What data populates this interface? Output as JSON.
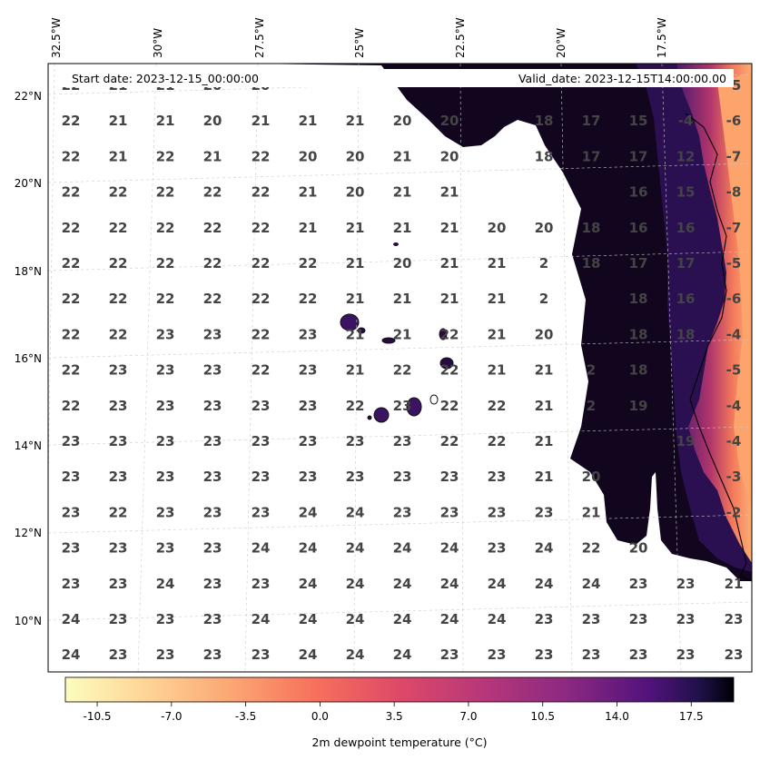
{
  "header": {
    "start_date": "Start date: 2023-12-15_00:00:00",
    "valid_date": "Valid_date: 2023-12-15T14:00:00.00"
  },
  "axes": {
    "lon_labels": [
      "32.5°W",
      "30°W",
      "27.5°W",
      "25°W",
      "22.5°W",
      "20°W",
      "17.5°W"
    ],
    "lat_labels": [
      "22°N",
      "20°N",
      "18°N",
      "16°N",
      "14°N",
      "12°N",
      "10°N"
    ]
  },
  "colorbar": {
    "title": "2m dewpoint temperature ($^\\circ$C)",
    "title_display": "2m dewpoint temperature (°C)",
    "tick_labels": [
      "-10.5",
      "-7.0",
      "-3.5",
      "0.0",
      "3.5",
      "7.0",
      "10.5",
      "14.0",
      "17.5"
    ],
    "colormap": "magma_r",
    "range": [
      -12,
      19.5
    ]
  },
  "colors": {
    "land_hot": "#fca46b",
    "land_dark": "#1a0b2e",
    "ocean": "#ffffff",
    "value_text": "#444444"
  },
  "chart_data": {
    "type": "heatmap",
    "title": "",
    "variable": "2m dewpoint temperature (°C)",
    "grid_values": [
      [
        "22",
        "21",
        "21",
        "20",
        "20",
        "",
        "",
        "",
        "",
        "",
        "",
        "",
        "",
        "",
        "-5"
      ],
      [
        "22",
        "21",
        "21",
        "20",
        "21",
        "21",
        "21",
        "20",
        "20",
        "",
        "18",
        "17",
        "15",
        "-4",
        "-6"
      ],
      [
        "22",
        "21",
        "22",
        "21",
        "22",
        "20",
        "20",
        "21",
        "20",
        "",
        "18",
        "17",
        "17",
        "12",
        "-7"
      ],
      [
        "22",
        "22",
        "22",
        "22",
        "22",
        "21",
        "20",
        "21",
        "21",
        "",
        "",
        "",
        "16",
        "15",
        "-8"
      ],
      [
        "22",
        "22",
        "22",
        "22",
        "22",
        "21",
        "21",
        "21",
        "21",
        "20",
        "20",
        "18",
        "16",
        "16",
        "-7"
      ],
      [
        "22",
        "22",
        "22",
        "22",
        "22",
        "22",
        "21",
        "20",
        "21",
        "21",
        "2",
        "18",
        "17",
        "17",
        "-5"
      ],
      [
        "22",
        "22",
        "22",
        "22",
        "22",
        "22",
        "21",
        "21",
        "21",
        "21",
        "2",
        "",
        "18",
        "16",
        "-6"
      ],
      [
        "22",
        "22",
        "23",
        "23",
        "22",
        "23",
        "21",
        "21",
        "22",
        "21",
        "20",
        "",
        "18",
        "18",
        "-4"
      ],
      [
        "22",
        "23",
        "23",
        "23",
        "22",
        "23",
        "21",
        "22",
        "22",
        "21",
        "21",
        "2",
        "18",
        "",
        "-5"
      ],
      [
        "22",
        "23",
        "23",
        "23",
        "23",
        "23",
        "22",
        "23",
        "22",
        "22",
        "21",
        "2",
        "19",
        "",
        "-4"
      ],
      [
        "23",
        "23",
        "23",
        "23",
        "23",
        "23",
        "23",
        "23",
        "22",
        "22",
        "21",
        "",
        "",
        "19",
        "-4"
      ],
      [
        "23",
        "23",
        "23",
        "23",
        "23",
        "23",
        "23",
        "23",
        "23",
        "23",
        "21",
        "20",
        "",
        "",
        "-3"
      ],
      [
        "23",
        "22",
        "23",
        "23",
        "23",
        "24",
        "24",
        "23",
        "23",
        "23",
        "23",
        "21",
        "",
        "",
        "-2"
      ],
      [
        "23",
        "23",
        "23",
        "23",
        "24",
        "24",
        "24",
        "24",
        "24",
        "23",
        "24",
        "22",
        "20",
        "",
        ""
      ],
      [
        "23",
        "23",
        "24",
        "23",
        "23",
        "24",
        "24",
        "24",
        "24",
        "24",
        "24",
        "24",
        "23",
        "23",
        "21"
      ],
      [
        "24",
        "23",
        "23",
        "23",
        "24",
        "24",
        "24",
        "24",
        "24",
        "24",
        "23",
        "23",
        "23",
        "23",
        "23"
      ],
      [
        "24",
        "23",
        "23",
        "23",
        "23",
        "24",
        "24",
        "24",
        "23",
        "23",
        "23",
        "23",
        "23",
        "23",
        "23"
      ]
    ]
  }
}
